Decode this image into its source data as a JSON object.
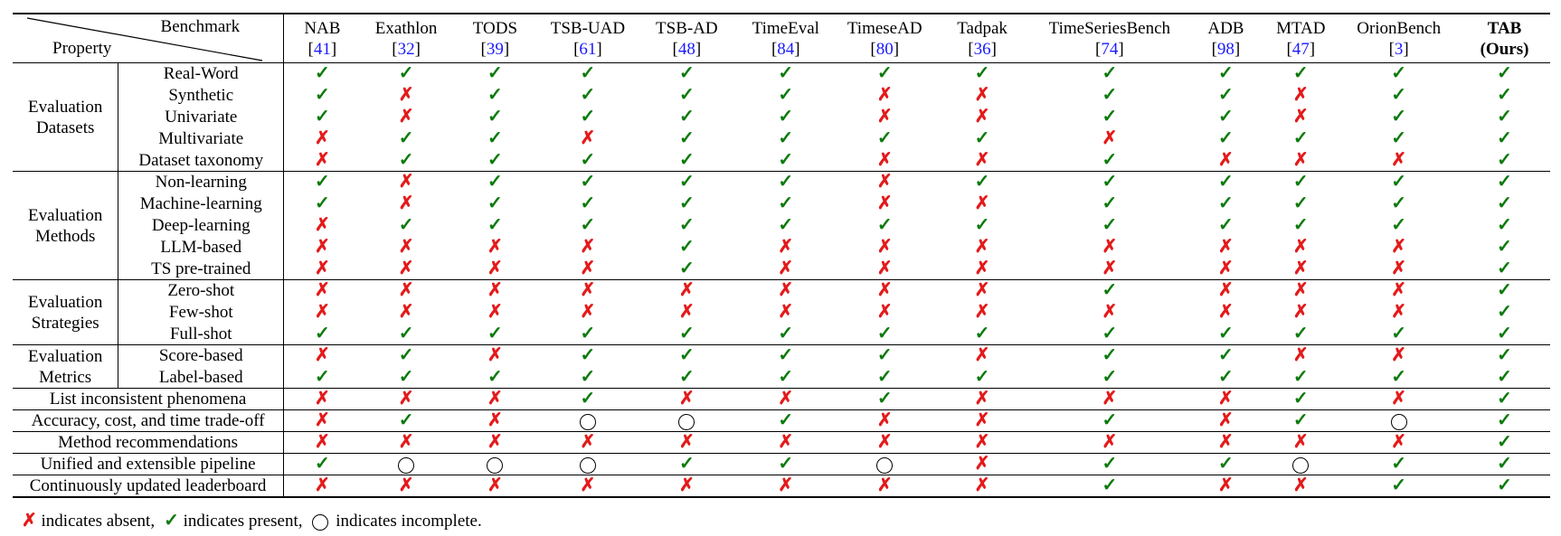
{
  "header": {
    "benchmark_label": "Benchmark",
    "property_label": "Property",
    "columns": [
      {
        "name": "NAB",
        "ref": "41"
      },
      {
        "name": "Exathlon",
        "ref": "32"
      },
      {
        "name": "TODS",
        "ref": "39"
      },
      {
        "name": "TSB-UAD",
        "ref": "61"
      },
      {
        "name": "TSB-AD",
        "ref": "48"
      },
      {
        "name": "TimeEval",
        "ref": "84"
      },
      {
        "name": "TimeseAD",
        "ref": "80"
      },
      {
        "name": "Tadpak",
        "ref": "36"
      },
      {
        "name": "TimeSeriesBench",
        "ref": "74"
      },
      {
        "name": "ADB",
        "ref": "98"
      },
      {
        "name": "MTAD",
        "ref": "47"
      },
      {
        "name": "OrionBench",
        "ref": "3"
      },
      {
        "name": "TAB",
        "sub": "(Ours)",
        "bold": true
      }
    ]
  },
  "symbols": {
    "yes": "✓",
    "no": "✗",
    "partial": "○"
  },
  "groups": [
    {
      "label_line1": "Evaluation",
      "label_line2": "Datasets",
      "rows": [
        {
          "label": "Real-Word",
          "marks": [
            "yes",
            "yes",
            "yes",
            "yes",
            "yes",
            "yes",
            "yes",
            "yes",
            "yes",
            "yes",
            "yes",
            "yes",
            "yes"
          ]
        },
        {
          "label": "Synthetic",
          "marks": [
            "yes",
            "no",
            "yes",
            "yes",
            "yes",
            "yes",
            "no",
            "no",
            "yes",
            "yes",
            "no",
            "yes",
            "yes"
          ]
        },
        {
          "label": "Univariate",
          "marks": [
            "yes",
            "no",
            "yes",
            "yes",
            "yes",
            "yes",
            "no",
            "no",
            "yes",
            "yes",
            "no",
            "yes",
            "yes"
          ]
        },
        {
          "label": "Multivariate",
          "marks": [
            "no",
            "yes",
            "yes",
            "no",
            "yes",
            "yes",
            "yes",
            "yes",
            "no",
            "yes",
            "yes",
            "yes",
            "yes"
          ]
        },
        {
          "label": "Dataset taxonomy",
          "marks": [
            "no",
            "yes",
            "yes",
            "yes",
            "yes",
            "yes",
            "no",
            "no",
            "yes",
            "no",
            "no",
            "no",
            "yes"
          ]
        }
      ]
    },
    {
      "label_line1": "Evaluation",
      "label_line2": "Methods",
      "rows": [
        {
          "label": "Non-learning",
          "marks": [
            "yes",
            "no",
            "yes",
            "yes",
            "yes",
            "yes",
            "no",
            "yes",
            "yes",
            "yes",
            "yes",
            "yes",
            "yes"
          ]
        },
        {
          "label": "Machine-learning",
          "marks": [
            "yes",
            "no",
            "yes",
            "yes",
            "yes",
            "yes",
            "no",
            "no",
            "yes",
            "yes",
            "yes",
            "yes",
            "yes"
          ]
        },
        {
          "label": "Deep-learning",
          "marks": [
            "no",
            "yes",
            "yes",
            "yes",
            "yes",
            "yes",
            "yes",
            "yes",
            "yes",
            "yes",
            "yes",
            "yes",
            "yes"
          ]
        },
        {
          "label": "LLM-based",
          "marks": [
            "no",
            "no",
            "no",
            "no",
            "yes",
            "no",
            "no",
            "no",
            "no",
            "no",
            "no",
            "no",
            "yes"
          ]
        },
        {
          "label": "TS pre-trained",
          "marks": [
            "no",
            "no",
            "no",
            "no",
            "yes",
            "no",
            "no",
            "no",
            "no",
            "no",
            "no",
            "no",
            "yes"
          ]
        }
      ]
    },
    {
      "label_line1": "Evaluation",
      "label_line2": "Strategies",
      "rows": [
        {
          "label": "Zero-shot",
          "marks": [
            "no",
            "no",
            "no",
            "no",
            "no",
            "no",
            "no",
            "no",
            "yes",
            "no",
            "no",
            "no",
            "yes"
          ]
        },
        {
          "label": "Few-shot",
          "marks": [
            "no",
            "no",
            "no",
            "no",
            "no",
            "no",
            "no",
            "no",
            "no",
            "no",
            "no",
            "no",
            "yes"
          ]
        },
        {
          "label": "Full-shot",
          "marks": [
            "yes",
            "yes",
            "yes",
            "yes",
            "yes",
            "yes",
            "yes",
            "yes",
            "yes",
            "yes",
            "yes",
            "yes",
            "yes"
          ]
        }
      ]
    },
    {
      "label_line1": "Evaluation",
      "label_line2": "Metrics",
      "rows": [
        {
          "label": "Score-based",
          "marks": [
            "no",
            "yes",
            "no",
            "yes",
            "yes",
            "yes",
            "yes",
            "no",
            "yes",
            "yes",
            "no",
            "no",
            "yes"
          ]
        },
        {
          "label": "Label-based",
          "marks": [
            "yes",
            "yes",
            "yes",
            "yes",
            "yes",
            "yes",
            "yes",
            "yes",
            "yes",
            "yes",
            "yes",
            "yes",
            "yes"
          ]
        }
      ]
    }
  ],
  "single_rows": [
    {
      "label": "List inconsistent phenomena",
      "marks": [
        "no",
        "no",
        "no",
        "yes",
        "no",
        "no",
        "yes",
        "no",
        "no",
        "no",
        "yes",
        "no",
        "yes"
      ]
    },
    {
      "label": "Accuracy, cost, and time trade-off",
      "marks": [
        "no",
        "yes",
        "no",
        "partial",
        "partial",
        "yes",
        "no",
        "no",
        "yes",
        "no",
        "yes",
        "partial",
        "yes"
      ]
    },
    {
      "label": "Method recommendations",
      "marks": [
        "no",
        "no",
        "no",
        "no",
        "no",
        "no",
        "no",
        "no",
        "no",
        "no",
        "no",
        "no",
        "yes"
      ]
    },
    {
      "label": "Unified and extensible pipeline",
      "marks": [
        "yes",
        "partial",
        "partial",
        "partial",
        "yes",
        "yes",
        "partial",
        "no",
        "yes",
        "yes",
        "partial",
        "yes",
        "yes"
      ]
    },
    {
      "label": "Continuously updated leaderboard",
      "marks": [
        "no",
        "no",
        "no",
        "no",
        "no",
        "no",
        "no",
        "no",
        "yes",
        "no",
        "no",
        "yes",
        "yes"
      ]
    }
  ],
  "legend": {
    "absent_text": "indicates absent,",
    "present_text": "indicates present,",
    "incomplete_text": "indicates incomplete."
  }
}
